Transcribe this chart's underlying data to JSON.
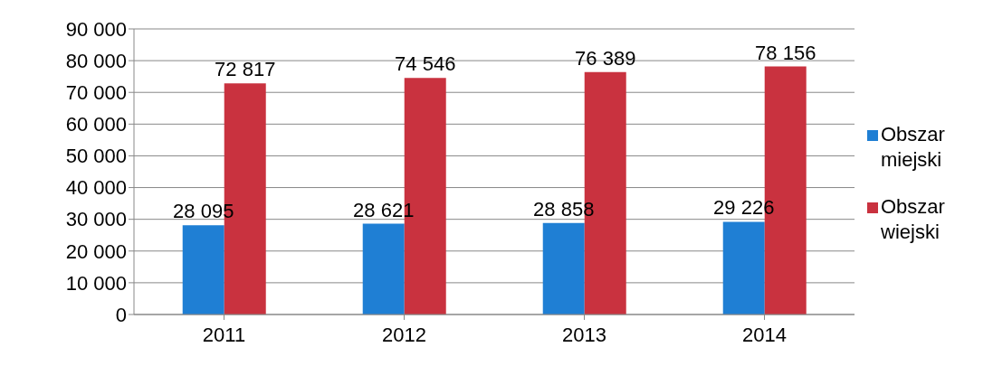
{
  "chart_data": {
    "type": "bar",
    "categories": [
      "2011",
      "2012",
      "2013",
      "2014"
    ],
    "series": [
      {
        "name": "Obszar miejski",
        "color": "#1f7fd4",
        "values": [
          28095,
          28621,
          28858,
          29226
        ],
        "value_labels": [
          "28 095",
          "28 621",
          "28 858",
          "29 226"
        ]
      },
      {
        "name": "Obszar wiejski",
        "color": "#c9323f",
        "values": [
          72817,
          74546,
          76389,
          78156
        ],
        "value_labels": [
          "72 817",
          "74 546",
          "76 389",
          "78 156"
        ]
      }
    ],
    "ylim": [
      0,
      90000
    ],
    "yticks": [
      {
        "value": 0,
        "label": "0"
      },
      {
        "value": 10000,
        "label": "10 000"
      },
      {
        "value": 20000,
        "label": "20 000"
      },
      {
        "value": 30000,
        "label": "30 000"
      },
      {
        "value": 40000,
        "label": "40 000"
      },
      {
        "value": 50000,
        "label": "50 000"
      },
      {
        "value": 60000,
        "label": "60 000"
      },
      {
        "value": 70000,
        "label": "70 000"
      },
      {
        "value": 80000,
        "label": "80 000"
      },
      {
        "value": 90000,
        "label": "90 000"
      }
    ],
    "grid": "y",
    "legend": "right"
  }
}
